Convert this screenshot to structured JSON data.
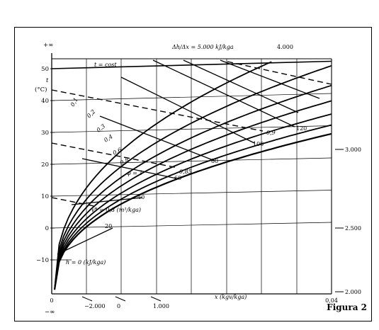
{
  "figure_label": "Figura 2",
  "chart_data": {
    "type": "diagram",
    "x_axis": {
      "label": "x (kgv/kga)",
      "ticks": [
        "0",
        "0,04"
      ],
      "range": [
        0,
        0.04
      ]
    },
    "y_axis": {
      "label_t": "t",
      "label_unit": "(°C)",
      "ticks": [
        "50",
        "40",
        "30",
        "20",
        "10",
        "0",
        "−10"
      ],
      "top_symbol": "+∞",
      "bottom_symbol": "−∞"
    },
    "h_scale": {
      "bottom_ticks": [
        "−2.000",
        "0",
        "1.000"
      ],
      "right_ticks": [
        "3.000",
        "2.500",
        "2.000"
      ],
      "top_ticks": [
        "4.000"
      ],
      "label": "h = 0  (kJ/kga)",
      "annotation": "Δh/Δx = 5.000  kJ/kga"
    },
    "isotherm_label": "t = cost",
    "relative_humidity_curves": [
      "0,1",
      "0,2",
      "0,3",
      "0,4",
      "0,6",
      "0,8"
    ],
    "phi_one_label": "φ = 1",
    "specific_volume_label": "v* = 0,8  (m³/kga)",
    "specific_volume_values": [
      "0,85",
      "0,9"
    ],
    "enthalpy_lines": [
      "20",
      "40",
      "60",
      "80",
      "100",
      "120"
    ]
  }
}
